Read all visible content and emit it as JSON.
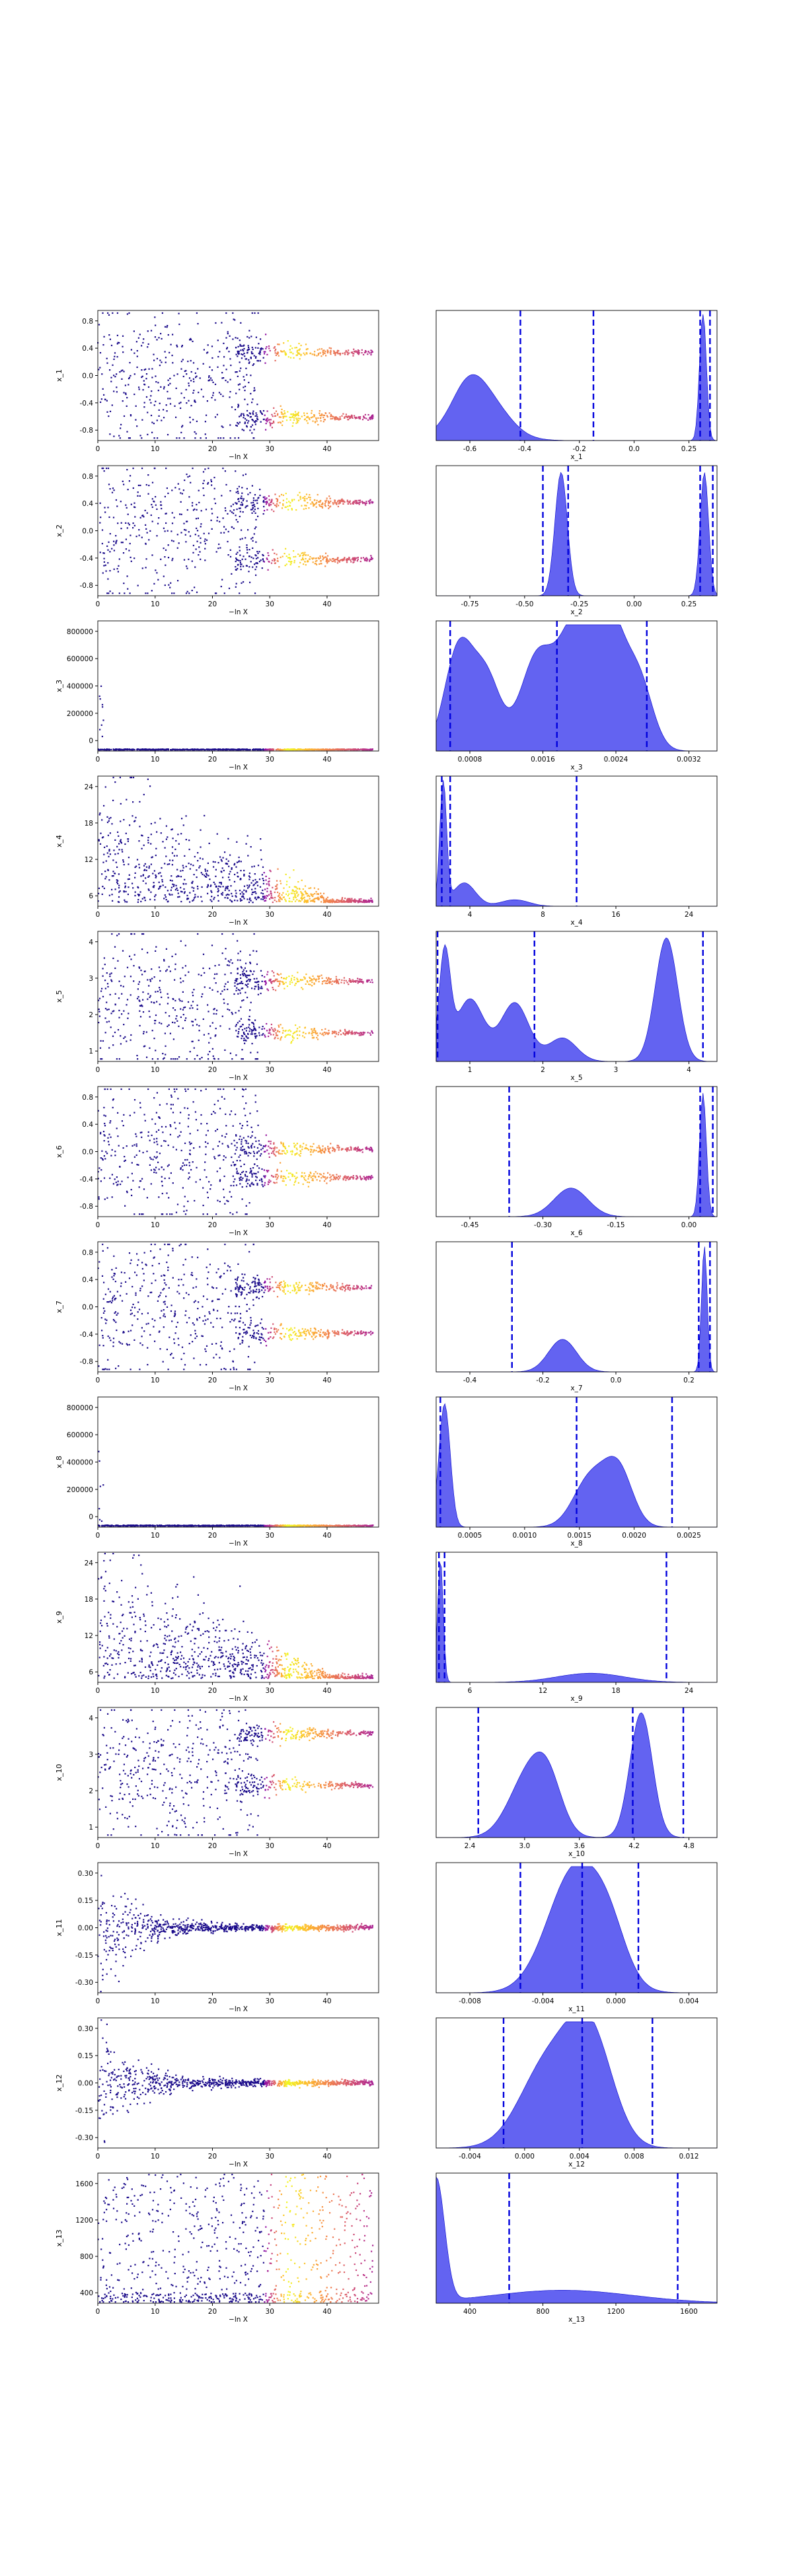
{
  "chart_data": [
    {
      "type": "scatter",
      "ylabel": "x_1",
      "xlabel": "−ln X",
      "xticks": [
        0,
        10,
        20,
        30,
        40
      ],
      "yticks": [
        "-0.8",
        "-0.4",
        "0.0",
        "0.4",
        "0.8"
      ],
      "kde_ticks": [
        "-0.6",
        "-0.4",
        "-0.2",
        "0.0",
        "0.25"
      ],
      "kde_xlabel": "x_1"
    },
    {
      "type": "scatter",
      "ylabel": "x_2",
      "xlabel": "−ln X",
      "xticks": [
        0,
        10,
        20,
        30,
        40
      ],
      "yticks": [
        "-0.8",
        "-0.4",
        "0.0",
        "0.4",
        "0.8"
      ],
      "kde_ticks": [
        "-0.75",
        "-0.50",
        "-0.25",
        "0.00",
        "0.25"
      ],
      "kde_xlabel": "x_2"
    },
    {
      "type": "scatter",
      "ylabel": "x_3",
      "xlabel": "−ln X",
      "xticks": [
        0,
        10,
        20,
        30,
        40
      ],
      "yticks": [
        "0",
        "200000",
        "400000",
        "600000",
        "800000"
      ],
      "kde_ticks": [
        "0.0008",
        "0.0016",
        "0.0024",
        "0.0032"
      ],
      "kde_xlabel": "x_3"
    },
    {
      "type": "scatter",
      "ylabel": "x_4",
      "xlabel": "−ln X",
      "xticks": [
        0,
        10,
        20,
        30,
        40
      ],
      "yticks": [
        "6",
        "12",
        "18",
        "24"
      ],
      "kde_ticks": [
        "4",
        "8",
        "16",
        "24"
      ],
      "kde_xlabel": "x_4"
    },
    {
      "type": "scatter",
      "ylabel": "x_5",
      "xlabel": "−ln X",
      "xticks": [
        0,
        10,
        20,
        30,
        40
      ],
      "yticks": [
        "1",
        "2",
        "3",
        "4"
      ],
      "kde_ticks": [
        "1",
        "2",
        "3",
        "4"
      ],
      "kde_xlabel": "x_5"
    },
    {
      "type": "scatter",
      "ylabel": "x_6",
      "xlabel": "−ln X",
      "xticks": [
        0,
        10,
        20,
        30,
        40
      ],
      "yticks": [
        "-0.8",
        "-0.4",
        "0.0",
        "0.4",
        "0.8"
      ],
      "kde_ticks": [
        "-0.45",
        "-0.30",
        "-0.15",
        "0.00"
      ],
      "kde_xlabel": "x_6"
    },
    {
      "type": "scatter",
      "ylabel": "x_7",
      "xlabel": "−ln X",
      "xticks": [
        0,
        10,
        20,
        30,
        40
      ],
      "yticks": [
        "-0.8",
        "-0.4",
        "0.0",
        "0.4",
        "0.8"
      ],
      "kde_ticks": [
        "-0.4",
        "-0.2",
        "0.0",
        "0.2"
      ],
      "kde_xlabel": "x_7"
    },
    {
      "type": "scatter",
      "ylabel": "x_8",
      "xlabel": "−ln X",
      "xticks": [
        0,
        10,
        20,
        30,
        40
      ],
      "yticks": [
        "0",
        "200000",
        "400000",
        "600000",
        "800000"
      ],
      "kde_ticks": [
        "0.0005",
        "0.0010",
        "0.0015",
        "0.0020",
        "0.0025"
      ],
      "kde_xlabel": "x_8"
    },
    {
      "type": "scatter",
      "ylabel": "x_9",
      "xlabel": "−ln X",
      "xticks": [
        0,
        10,
        20,
        30,
        40
      ],
      "yticks": [
        "6",
        "12",
        "18",
        "24"
      ],
      "kde_ticks": [
        "6",
        "12",
        "18",
        "24"
      ],
      "kde_xlabel": "x_9"
    },
    {
      "type": "scatter",
      "ylabel": "x_10",
      "xlabel": "−ln X",
      "xticks": [
        0,
        10,
        20,
        30,
        40
      ],
      "yticks": [
        "1",
        "2",
        "3",
        "4"
      ],
      "kde_ticks": [
        "2.4",
        "3.0",
        "3.6",
        "4.2",
        "4.8"
      ],
      "kde_xlabel": "x_10"
    },
    {
      "type": "scatter",
      "ylabel": "x_11",
      "xlabel": "−ln X",
      "xticks": [
        0,
        10,
        20,
        30,
        40
      ],
      "yticks": [
        "-0.30",
        "-0.15",
        "0.00",
        "0.15",
        "0.30"
      ],
      "kde_ticks": [
        "-0.008",
        "-0.004",
        "0.000",
        "0.004"
      ],
      "kde_xlabel": "x_11"
    },
    {
      "type": "scatter",
      "ylabel": "x_12",
      "xlabel": "−ln X",
      "xticks": [
        0,
        10,
        20,
        30,
        40
      ],
      "yticks": [
        "-0.30",
        "-0.15",
        "0.00",
        "0.15",
        "0.30"
      ],
      "kde_ticks": [
        "-0.004",
        "0.000",
        "0.004",
        "0.008",
        "0.012"
      ],
      "kde_xlabel": "x_12"
    },
    {
      "type": "scatter",
      "ylabel": "x_13",
      "xlabel": "−ln X",
      "xticks": [
        0,
        10,
        20,
        30,
        40
      ],
      "yticks": [
        "400",
        "800",
        "1200",
        "1600"
      ],
      "kde_ticks": [
        "400",
        "800",
        "1200",
        "1600"
      ],
      "kde_xlabel": "x_13"
    }
  ],
  "colors": {
    "kde_fill": "#5b5bf0",
    "kde_line": "#0000cc",
    "scatter_low": "#0d0887",
    "scatter_high": "#f0f921"
  }
}
